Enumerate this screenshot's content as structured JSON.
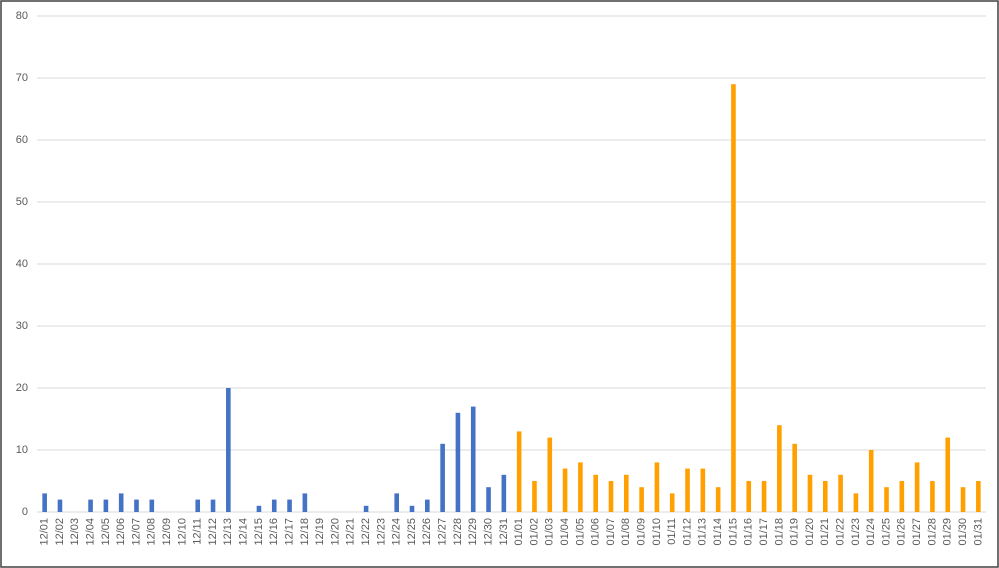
{
  "chart_data": {
    "type": "bar",
    "categories": [
      "12/01",
      "12/02",
      "12/03",
      "12/04",
      "12/05",
      "12/06",
      "12/07",
      "12/08",
      "12/09",
      "12/10",
      "12/11",
      "12/12",
      "12/13",
      "12/14",
      "12/15",
      "12/16",
      "12/17",
      "12/18",
      "12/19",
      "12/20",
      "12/21",
      "12/22",
      "12/23",
      "12/24",
      "12/25",
      "12/26",
      "12/27",
      "12/28",
      "12/29",
      "12/30",
      "12/31",
      "01/01",
      "01/02",
      "01/03",
      "01/04",
      "01/05",
      "01/06",
      "01/07",
      "01/08",
      "01/09",
      "01/10",
      "01/11",
      "01/12",
      "01/13",
      "01/14",
      "01/15",
      "01/16",
      "01/17",
      "01/18",
      "01/19",
      "01/20",
      "01/21",
      "01/22",
      "01/23",
      "01/24",
      "01/25",
      "01/26",
      "01/27",
      "01/28",
      "01/29",
      "01/30",
      "01/31"
    ],
    "values": [
      3,
      2,
      0,
      2,
      2,
      3,
      2,
      2,
      0,
      0,
      2,
      2,
      20,
      0,
      1,
      2,
      2,
      3,
      0,
      0,
      0,
      1,
      0,
      3,
      1,
      2,
      11,
      16,
      17,
      4,
      6,
      13,
      5,
      12,
      7,
      8,
      6,
      5,
      6,
      4,
      8,
      3,
      7,
      7,
      4,
      69,
      5,
      5,
      14,
      11,
      6,
      5,
      6,
      3,
      10,
      4,
      5,
      8,
      5,
      12,
      4,
      5
    ],
    "colors": [
      "#4472c4",
      "#4472c4",
      "#4472c4",
      "#4472c4",
      "#4472c4",
      "#4472c4",
      "#4472c4",
      "#4472c4",
      "#4472c4",
      "#4472c4",
      "#4472c4",
      "#4472c4",
      "#4472c4",
      "#4472c4",
      "#4472c4",
      "#4472c4",
      "#4472c4",
      "#4472c4",
      "#4472c4",
      "#4472c4",
      "#4472c4",
      "#4472c4",
      "#4472c4",
      "#4472c4",
      "#4472c4",
      "#4472c4",
      "#4472c4",
      "#4472c4",
      "#4472c4",
      "#4472c4",
      "#4472c4",
      "#ffa000",
      "#ffa000",
      "#ffa000",
      "#ffa000",
      "#ffa000",
      "#ffa000",
      "#ffa000",
      "#ffa000",
      "#ffa000",
      "#ffa000",
      "#ffa000",
      "#ffa000",
      "#ffa000",
      "#ffa000",
      "#ffa000",
      "#ffa000",
      "#ffa000",
      "#ffa000",
      "#ffa000",
      "#ffa000",
      "#ffa000",
      "#ffa000",
      "#ffa000",
      "#ffa000",
      "#ffa000",
      "#ffa000",
      "#ffa000",
      "#ffa000",
      "#ffa000",
      "#ffa000",
      "#ffa000"
    ],
    "ylim": [
      0,
      80
    ],
    "yticks": [
      0,
      10,
      20,
      30,
      40,
      50,
      60,
      70,
      80
    ],
    "grid": true
  }
}
